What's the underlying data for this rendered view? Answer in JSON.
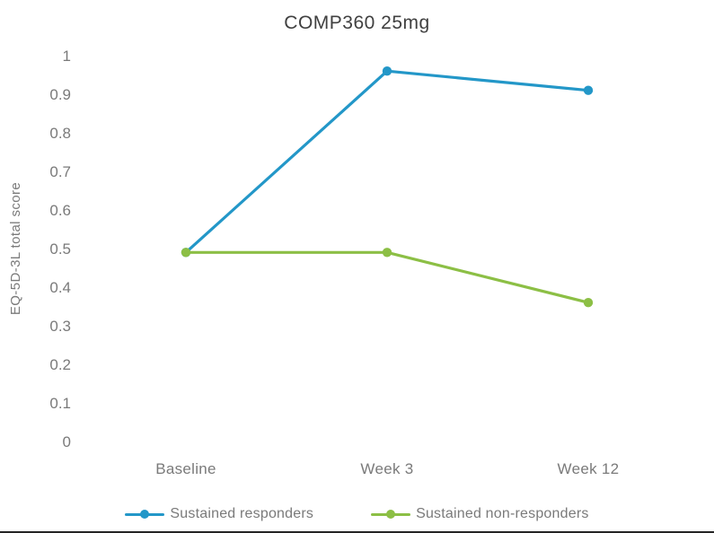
{
  "chart_data": {
    "type": "line",
    "title": "COMP360 25mg",
    "xlabel": "",
    "ylabel": "EQ-5D-3L total score",
    "categories": [
      "Baseline",
      "Week 3",
      "Week 12"
    ],
    "series": [
      {
        "name": "Sustained responders",
        "color": "#2397C8",
        "values": [
          0.49,
          0.96,
          0.91
        ]
      },
      {
        "name": "Sustained non-responders",
        "color": "#8CBF45",
        "values": [
          0.49,
          0.49,
          0.36
        ]
      }
    ],
    "ylim": [
      0,
      1
    ],
    "ytick_step": 0.1,
    "grid": false,
    "legend_position": "bottom"
  },
  "style": {
    "text_color": "#7a7a7a",
    "title_color": "#404040"
  }
}
